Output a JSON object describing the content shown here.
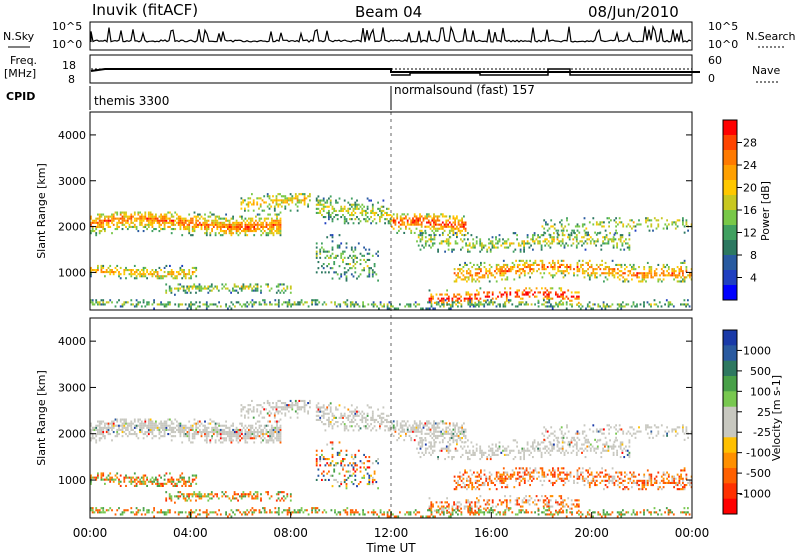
{
  "header": {
    "station": "Inuvik (fitACF)",
    "beam": "Beam 04",
    "date": "08/Jun/2010"
  },
  "top_panels": {
    "nsky_label": "N.Sky",
    "nsky_ticks": [
      "10^5",
      "10^0"
    ],
    "nsearch_label": "N.Search",
    "nsearch_ticks": [
      "10^5",
      "10^0"
    ],
    "freq_label": "Freq.",
    "freq_unit": "[MHz]",
    "freq_ticks": [
      "18",
      "8"
    ],
    "nave_label": "Nave",
    "nave_ticks": [
      "60",
      "0"
    ],
    "cpid_label": "CPID",
    "cpid_segments": [
      {
        "name": "themis 3300",
        "start_h": 0,
        "end_h": 12
      },
      {
        "name": "normalsound (fast) 157",
        "start_h": 12,
        "end_h": 24
      }
    ]
  },
  "chart_data": [
    {
      "type": "heatmap",
      "title": "Power",
      "ylabel": "Slant Range [km]",
      "ylim": [
        180,
        4500
      ],
      "yticks": [
        "1000",
        "2000",
        "3000",
        "4000"
      ],
      "xlim": [
        0,
        24
      ],
      "colorbar": {
        "label": "Power [dB]",
        "ticks": [
          "28",
          "24",
          "20",
          "16",
          "12",
          "8",
          "4"
        ],
        "colors": [
          "#ff0000",
          "#ff4400",
          "#ff7a00",
          "#ffa000",
          "#ffc800",
          "#c8c820",
          "#78c848",
          "#40a060",
          "#2c7860",
          "#285aa0",
          "#2040c0",
          "#0000ff"
        ]
      }
    },
    {
      "type": "heatmap",
      "title": "Velocity",
      "ylabel": "Slant Range [km]",
      "ylim": [
        180,
        4500
      ],
      "yticks": [
        "1000",
        "2000",
        "3000",
        "4000"
      ],
      "xlim": [
        0,
        24
      ],
      "xlabel": "Time UT",
      "xticks": [
        "00:00",
        "04:00",
        "08:00",
        "12:00",
        "16:00",
        "20:00",
        "00:00"
      ],
      "colorbar": {
        "label": "Velocity [m s-1]",
        "ticks": [
          "1000",
          "500",
          "100",
          "25",
          "-25",
          "-100",
          "-500",
          "-1000"
        ],
        "colors": [
          "#1a3aa8",
          "#2a5aa0",
          "#2e7860",
          "#48a048",
          "#78c850",
          "#c8c8c0",
          "#c8c8c0",
          "#ffc000",
          "#ff9000",
          "#ff6000",
          "#ff3000",
          "#ff0000"
        ]
      }
    }
  ],
  "colors": {
    "ground_scatter": "#c8c8c0",
    "axis": "#000000"
  }
}
